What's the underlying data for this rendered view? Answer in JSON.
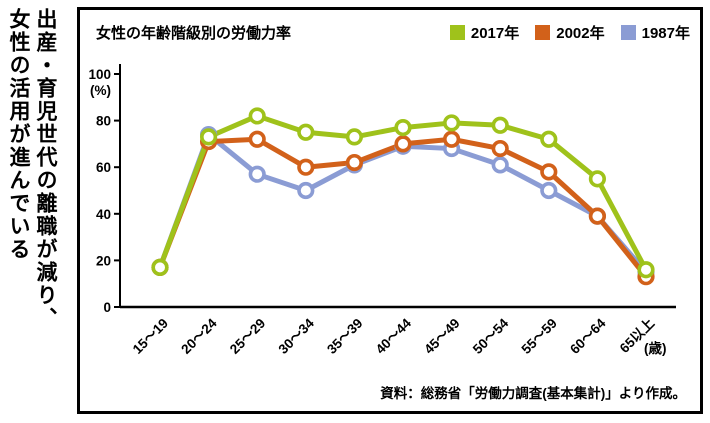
{
  "headline": {
    "line1": "出産・育児世代の離職が減り、",
    "line2": "女性の活用が進んでいる"
  },
  "chart": {
    "title": "女性の年齢階級別の労働力率",
    "y_unit": "(%)",
    "x_unit": "(歳)",
    "source": "資料：総務省「労働力調査(基本集計)」より作成。"
  },
  "chart_data": {
    "type": "line",
    "title": "女性の年齢階級別の労働力率",
    "categories": [
      "15〜19",
      "20〜24",
      "25〜29",
      "30〜34",
      "35〜39",
      "40〜44",
      "45〜49",
      "50〜54",
      "55〜59",
      "60〜64",
      "65以上"
    ],
    "series": [
      {
        "name": "2017年",
        "color": "#9fc21b",
        "values": [
          17,
          73,
          82,
          75,
          73,
          77,
          79,
          78,
          72,
          55,
          16
        ]
      },
      {
        "name": "2002年",
        "color": "#d2611a",
        "values": [
          17,
          71,
          72,
          60,
          62,
          70,
          72,
          68,
          58,
          39,
          13
        ]
      },
      {
        "name": "1987年",
        "color": "#8b9cd4",
        "values": [
          17,
          74,
          57,
          50,
          61,
          69,
          68,
          61,
          50,
          39,
          15
        ]
      }
    ],
    "xlabel": "(歳)",
    "ylabel": "(%)",
    "ylim": [
      0,
      100
    ],
    "yticks": [
      0,
      20,
      40,
      60,
      80,
      100
    ],
    "grid": false,
    "legend_position": "top-right",
    "marker": "open-circle"
  }
}
